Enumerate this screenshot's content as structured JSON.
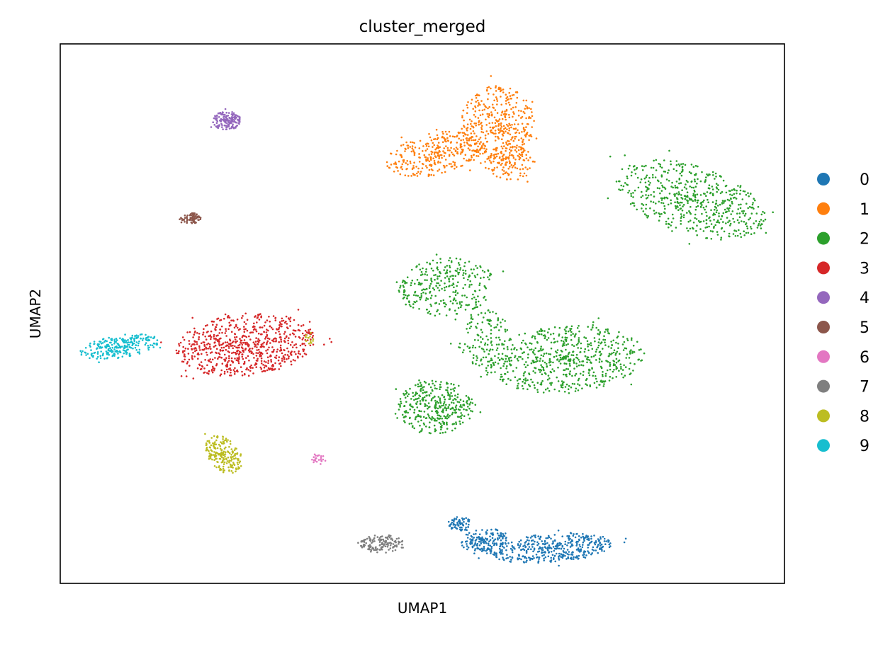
{
  "chart_data": {
    "type": "scatter",
    "title": "cluster_merged",
    "xlabel": "UMAP1",
    "ylabel": "UMAP2",
    "xlim": [
      -5,
      22
    ],
    "ylim": [
      -6,
      20
    ],
    "grid": false,
    "ticks": "none",
    "legend_position": "right",
    "series": [
      {
        "name": "0",
        "color": "#1f77b4",
        "blobs": [
          {
            "cx": 13.3,
            "cy": -4.3,
            "rx": 2.3,
            "ry": 0.7,
            "n": 420,
            "rot": 0.1
          },
          {
            "cx": 10.8,
            "cy": -3.9,
            "rx": 0.9,
            "ry": 0.55,
            "n": 160,
            "rot": 0.2
          },
          {
            "cx": 9.9,
            "cy": -3.1,
            "rx": 0.5,
            "ry": 0.35,
            "n": 70,
            "rot": 0
          }
        ]
      },
      {
        "name": "1",
        "color": "#ff7f0e",
        "blobs": [
          {
            "cx": 11.3,
            "cy": 16.1,
            "rx": 1.4,
            "ry": 1.9,
            "n": 380,
            "rot": 0
          },
          {
            "cx": 9.0,
            "cy": 14.7,
            "rx": 1.9,
            "ry": 1.0,
            "n": 320,
            "rot": 0.3
          },
          {
            "cx": 11.8,
            "cy": 14.3,
            "rx": 0.9,
            "ry": 0.9,
            "n": 120,
            "rot": 0
          }
        ]
      },
      {
        "name": "2",
        "color": "#2ca02c",
        "blobs": [
          {
            "cx": 18.5,
            "cy": 12.5,
            "rx": 3.0,
            "ry": 1.6,
            "n": 560,
            "rot": -0.45
          },
          {
            "cx": 9.4,
            "cy": 8.3,
            "rx": 1.8,
            "ry": 1.4,
            "n": 300,
            "rot": 0.2
          },
          {
            "cx": 9.0,
            "cy": 2.5,
            "rx": 1.4,
            "ry": 1.3,
            "n": 360,
            "rot": 0
          },
          {
            "cx": 13.8,
            "cy": 4.8,
            "rx": 3.0,
            "ry": 1.6,
            "n": 620,
            "rot": 0.1
          },
          {
            "cx": 10.8,
            "cy": 5.8,
            "rx": 1.0,
            "ry": 1.4,
            "n": 120,
            "rot": 0
          }
        ]
      },
      {
        "name": "3",
        "color": "#d62728",
        "blobs": [
          {
            "cx": 1.9,
            "cy": 5.5,
            "rx": 2.6,
            "ry": 1.5,
            "n": 720,
            "rot": 0.15
          }
        ]
      },
      {
        "name": "4",
        "color": "#9467bd",
        "blobs": [
          {
            "cx": 1.2,
            "cy": 16.3,
            "rx": 0.55,
            "ry": 0.45,
            "n": 160,
            "rot": 0
          }
        ]
      },
      {
        "name": "5",
        "color": "#8c564b",
        "blobs": [
          {
            "cx": -0.1,
            "cy": 11.6,
            "rx": 0.4,
            "ry": 0.25,
            "n": 70,
            "rot": 0
          }
        ]
      },
      {
        "name": "6",
        "color": "#e377c2",
        "blobs": [
          {
            "cx": 4.6,
            "cy": 0.0,
            "rx": 0.25,
            "ry": 0.3,
            "n": 24,
            "rot": 0
          }
        ]
      },
      {
        "name": "7",
        "color": "#7f7f7f",
        "blobs": [
          {
            "cx": 7.0,
            "cy": -4.1,
            "rx": 0.9,
            "ry": 0.45,
            "n": 140,
            "rot": 0
          }
        ]
      },
      {
        "name": "8",
        "color": "#bcbd22",
        "blobs": [
          {
            "cx": 1.1,
            "cy": 0.2,
            "rx": 0.6,
            "ry": 1.0,
            "n": 200,
            "rot": 0.45
          },
          {
            "cx": 4.3,
            "cy": 5.8,
            "rx": 0.15,
            "ry": 0.3,
            "n": 14,
            "rot": 0
          }
        ]
      },
      {
        "name": "9",
        "color": "#17becf",
        "blobs": [
          {
            "cx": -2.8,
            "cy": 5.4,
            "rx": 1.5,
            "ry": 0.55,
            "n": 260,
            "rot": 0.2
          }
        ]
      }
    ]
  }
}
